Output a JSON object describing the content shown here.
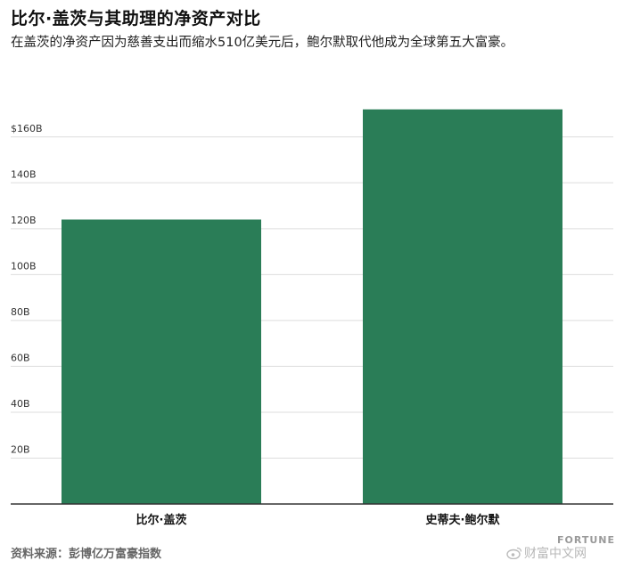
{
  "title": "比尔·盖茨与其助理的净资产对比",
  "subtitle": "在盖茨的净资产因为慈善支出而缩水510亿美元后，鲍尔默取代他成为全球第五大富豪。",
  "source": "资料来源：彭博亿万富豪指数",
  "brand": "FORTUNE",
  "watermark": "财富中文网",
  "colors": {
    "bar": "#2a7d57",
    "grid": "#dddddd",
    "axis": "#333333"
  },
  "chart_data": {
    "type": "bar",
    "categories": [
      "比尔·盖茨",
      "史蒂夫·鲍尔默"
    ],
    "values": [
      124,
      172
    ],
    "ylim": [
      0,
      170
    ],
    "yticks": [
      20,
      40,
      60,
      80,
      100,
      120,
      140,
      160
    ],
    "ytick_labels": [
      "20B",
      "40B",
      "60B",
      "80B",
      "100B",
      "120B",
      "140B",
      "$160B"
    ],
    "grid": true
  }
}
